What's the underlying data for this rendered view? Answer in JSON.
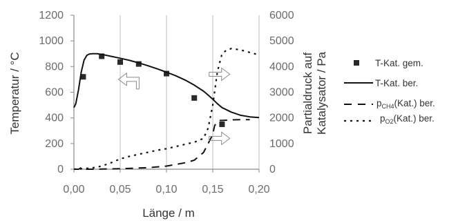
{
  "chart_data": {
    "type": "line",
    "xlabel": "Länge / m",
    "ylabel_left": "Temperatur / °C",
    "ylabel_right_line1": "Partialdruck auf",
    "ylabel_right_line2": "Katalysator / Pa",
    "xlim": [
      0,
      0.2
    ],
    "ylim_left": [
      0,
      1200
    ],
    "ylim_right": [
      0,
      6000
    ],
    "x_ticks": [
      "0,00",
      "0,05",
      "0,10",
      "0,15",
      "0,20"
    ],
    "x_tick_values": [
      0,
      0.05,
      0.1,
      0.15,
      0.2
    ],
    "y_left_ticks": [
      "0",
      "200",
      "400",
      "600",
      "800",
      "1000",
      "1200"
    ],
    "y_left_tick_values": [
      0,
      200,
      400,
      600,
      800,
      1000,
      1200
    ],
    "y_right_ticks": [
      "0",
      "1000",
      "2000",
      "3000",
      "4000",
      "5000",
      "6000"
    ],
    "y_right_tick_values": [
      0,
      1000,
      2000,
      3000,
      4000,
      5000,
      6000
    ],
    "grid": "vertical",
    "legend_position": "right",
    "series": [
      {
        "name": "T-Kat. gem.",
        "axis": "left",
        "style": "square-markers",
        "x": [
          0.01,
          0.03,
          0.05,
          0.07,
          0.1,
          0.13,
          0.16
        ],
        "y": [
          720,
          880,
          835,
          820,
          745,
          555,
          350
        ]
      },
      {
        "name": "T-Kat. ber.",
        "axis": "left",
        "style": "solid",
        "x": [
          0.0,
          0.002,
          0.005,
          0.008,
          0.011,
          0.014,
          0.017,
          0.02,
          0.025,
          0.03,
          0.04,
          0.05,
          0.06,
          0.07,
          0.08,
          0.09,
          0.1,
          0.11,
          0.12,
          0.13,
          0.14,
          0.145,
          0.15,
          0.155,
          0.16,
          0.17,
          0.18,
          0.19,
          0.2
        ],
        "y": [
          480,
          510,
          620,
          760,
          850,
          888,
          898,
          900,
          900,
          895,
          880,
          865,
          848,
          828,
          806,
          782,
          756,
          728,
          695,
          655,
          608,
          578,
          545,
          510,
          480,
          445,
          420,
          408,
          402
        ]
      },
      {
        "name_main": "p",
        "name_sub": "CH4",
        "name_rest": "(Kat.) ber.",
        "axis": "right",
        "style": "dashed",
        "x": [
          0.0,
          0.005,
          0.008,
          0.01,
          0.02,
          0.05,
          0.08,
          0.1,
          0.12,
          0.13,
          0.14,
          0.145,
          0.15,
          0.152,
          0.155,
          0.158,
          0.16,
          0.17,
          0.18,
          0.19
        ],
        "y": [
          0,
          0,
          60,
          0,
          0,
          20,
          60,
          120,
          250,
          350,
          650,
          1000,
          1350,
          1700,
          1850,
          1900,
          1900,
          1920,
          1930,
          1930
        ]
      },
      {
        "name_main": "p",
        "name_sub": "O2",
        "name_rest": "(Kat.) ber.",
        "axis": "right",
        "style": "dotted",
        "x": [
          0.0,
          0.01,
          0.02,
          0.03,
          0.04,
          0.05,
          0.06,
          0.07,
          0.08,
          0.09,
          0.1,
          0.11,
          0.12,
          0.13,
          0.14,
          0.145,
          0.15,
          0.155,
          0.16,
          0.165,
          0.17,
          0.18,
          0.19,
          0.2
        ],
        "y": [
          0,
          20,
          50,
          120,
          250,
          400,
          500,
          580,
          660,
          740,
          800,
          880,
          970,
          1050,
          1200,
          1600,
          2500,
          3800,
          4500,
          4640,
          4700,
          4650,
          4550,
          4450
        ]
      }
    ],
    "annotations": [
      {
        "type": "arrow",
        "direction": "left",
        "axis": "left",
        "x": 0.06,
        "y": 700
      },
      {
        "type": "arrow",
        "direction": "right",
        "axis": "right",
        "x": 0.155,
        "y": 3700
      },
      {
        "type": "arrow",
        "direction": "right",
        "axis": "right",
        "x": 0.155,
        "y": 1200
      }
    ]
  }
}
